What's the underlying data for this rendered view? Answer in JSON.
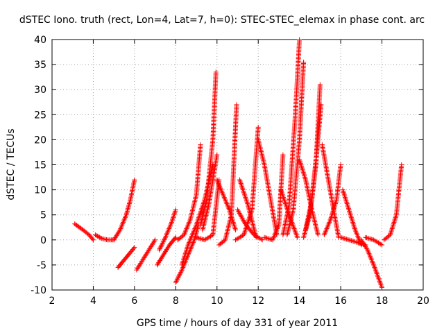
{
  "chart_data": {
    "type": "scatter",
    "title": "dSTEC Iono. truth (rect, Lon=4, Lat=7, h=0): STEC-STEC_elemax in phase cont. arc",
    "xlabel": "GPS time / hours of day 331 of year 2011",
    "ylabel": "dSTEC  / TECUs",
    "xlim": [
      2,
      20
    ],
    "ylim": [
      -10,
      40
    ],
    "xticks": [
      2,
      4,
      6,
      8,
      10,
      12,
      14,
      16,
      18,
      20
    ],
    "yticks": [
      -10,
      -5,
      0,
      5,
      10,
      15,
      20,
      25,
      30,
      35,
      40
    ],
    "grid": true,
    "marker": "+",
    "series_color": "#ff0000",
    "arcs": [
      {
        "x": [
          3.1,
          3.5,
          3.8,
          4.0
        ],
        "y": [
          3.2,
          2.0,
          1.0,
          0.0
        ]
      },
      {
        "x": [
          4.1,
          4.4,
          4.7,
          5.0
        ],
        "y": [
          1.0,
          0.3,
          0.0,
          0.0
        ]
      },
      {
        "x": [
          5.0,
          5.3,
          5.6,
          5.8,
          6.0
        ],
        "y": [
          0.0,
          2.0,
          5.0,
          8.0,
          12.0
        ]
      },
      {
        "x": [
          5.2,
          5.5,
          5.8,
          6.0
        ],
        "y": [
          -5.5,
          -4.0,
          -2.5,
          -1.5
        ]
      },
      {
        "x": [
          6.1,
          6.4,
          6.7,
          7.0
        ],
        "y": [
          -6.0,
          -4.0,
          -2.0,
          0.0
        ]
      },
      {
        "x": [
          7.1,
          7.4,
          7.7,
          8.0
        ],
        "y": [
          -5.0,
          -3.0,
          -1.0,
          0.5
        ]
      },
      {
        "x": [
          7.2,
          7.5,
          7.8,
          8.0
        ],
        "y": [
          -2.0,
          0.5,
          3.5,
          6.0
        ]
      },
      {
        "x": [
          8.0,
          8.3,
          8.6,
          8.9,
          9.1
        ],
        "y": [
          -8.5,
          -6.0,
          -3.0,
          0.0,
          3.0
        ]
      },
      {
        "x": [
          8.1,
          8.4,
          8.7,
          9.0,
          9.2
        ],
        "y": [
          0.0,
          1.0,
          4.0,
          9.0,
          19.0
        ]
      },
      {
        "x": [
          8.3,
          8.6,
          9.0,
          9.4,
          9.8
        ],
        "y": [
          -5.0,
          -1.0,
          3.0,
          8.0,
          15.0
        ]
      },
      {
        "x": [
          9.2,
          9.5,
          9.8,
          9.95
        ],
        "y": [
          3.0,
          8.0,
          20.0,
          33.5
        ]
      },
      {
        "x": [
          9.3,
          9.6,
          10.0
        ],
        "y": [
          2.0,
          7.0,
          17.0
        ]
      },
      {
        "x": [
          9.0,
          9.4,
          9.8,
          10.1
        ],
        "y": [
          0.5,
          0.0,
          1.0,
          12.0
        ]
      },
      {
        "x": [
          10.0,
          10.3,
          10.6,
          10.9
        ],
        "y": [
          12.0,
          9.0,
          6.0,
          2.0
        ]
      },
      {
        "x": [
          10.1,
          10.4,
          10.7,
          10.95
        ],
        "y": [
          -1.0,
          0.0,
          5.0,
          27.0
        ]
      },
      {
        "x": [
          10.9,
          11.3,
          11.7,
          12.0
        ],
        "y": [
          0.0,
          1.0,
          6.0,
          22.5
        ]
      },
      {
        "x": [
          11.1,
          11.5,
          11.9
        ],
        "y": [
          12.0,
          7.0,
          0.5
        ]
      },
      {
        "x": [
          11.0,
          11.4,
          11.8,
          12.2
        ],
        "y": [
          6.0,
          3.0,
          1.0,
          0.0
        ]
      },
      {
        "x": [
          12.0,
          12.3,
          12.6,
          12.9
        ],
        "y": [
          20.0,
          15.0,
          8.0,
          1.0
        ]
      },
      {
        "x": [
          12.3,
          12.7,
          13.0,
          13.2
        ],
        "y": [
          0.5,
          0.0,
          3.0,
          17.0
        ]
      },
      {
        "x": [
          13.1,
          13.5,
          13.9
        ],
        "y": [
          10.0,
          5.0,
          0.5
        ]
      },
      {
        "x": [
          13.2,
          13.5,
          13.8,
          14.0
        ],
        "y": [
          1.0,
          7.0,
          25.0,
          40.0
        ]
      },
      {
        "x": [
          13.4,
          13.7,
          14.0,
          14.2
        ],
        "y": [
          1.0,
          6.0,
          20.0,
          35.5
        ]
      },
      {
        "x": [
          14.0,
          14.3,
          14.6,
          14.9
        ],
        "y": [
          16.0,
          12.0,
          6.0,
          1.0
        ]
      },
      {
        "x": [
          14.2,
          14.5,
          14.8,
          15.0
        ],
        "y": [
          0.5,
          5.0,
          15.0,
          31.0
        ]
      },
      {
        "x": [
          14.3,
          14.6,
          14.85,
          15.05
        ],
        "y": [
          2.0,
          8.0,
          18.0,
          27.0
        ]
      },
      {
        "x": [
          15.1,
          15.4,
          15.7,
          15.9
        ],
        "y": [
          19.0,
          12.0,
          5.0,
          0.5
        ]
      },
      {
        "x": [
          15.2,
          15.5,
          15.8,
          16.0
        ],
        "y": [
          1.0,
          4.0,
          8.0,
          15.0
        ]
      },
      {
        "x": [
          16.1,
          16.4,
          16.7,
          17.0
        ],
        "y": [
          10.0,
          6.0,
          2.0,
          -1.0
        ]
      },
      {
        "x": [
          16.0,
          16.4,
          16.8,
          17.2
        ],
        "y": [
          0.5,
          0.0,
          -0.5,
          -1.0
        ]
      },
      {
        "x": [
          17.0,
          17.3,
          17.6,
          18.0
        ],
        "y": [
          0.0,
          -2.0,
          -5.0,
          -9.5
        ]
      },
      {
        "x": [
          17.2,
          17.6,
          18.0
        ],
        "y": [
          0.5,
          0.0,
          -1.0
        ]
      },
      {
        "x": [
          18.1,
          18.4,
          18.7,
          18.95
        ],
        "y": [
          0.0,
          1.0,
          5.0,
          15.0
        ]
      }
    ]
  }
}
